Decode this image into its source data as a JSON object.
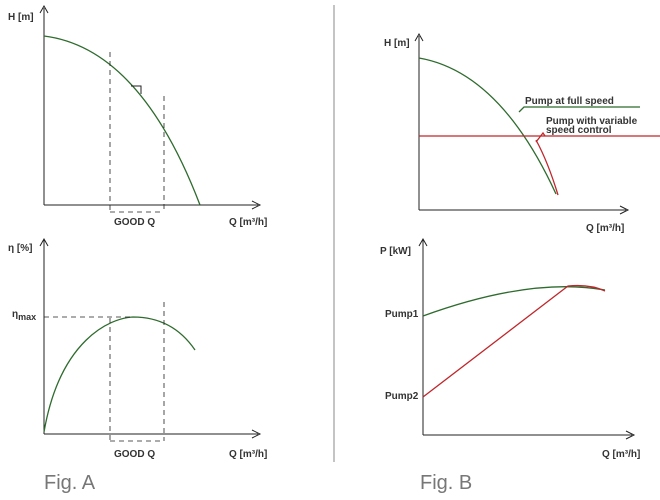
{
  "fig_a": {
    "caption": "Fig. A",
    "top": {
      "ylabel": "H [m]",
      "xlabel": "Q [m³/h]",
      "range_label": "GOOD Q"
    },
    "bottom": {
      "ylabel": "η [%]",
      "xlabel": "Q [m³/h]",
      "range_label": "GOOD Q",
      "eta_max_label": "η",
      "eta_max_sub": "max"
    }
  },
  "fig_b": {
    "caption": "Fig. B",
    "top": {
      "ylabel": "H [m]",
      "xlabel": "Q [m³/h]",
      "full_speed_label": "Pump at full speed",
      "variable_label_line1": "Pump with variable",
      "variable_label_line2": "speed control"
    },
    "bottom": {
      "ylabel": "P [kW]",
      "xlabel": "Q [m³/h]",
      "pump1_label": "Pump1",
      "pump2_label": "Pump2"
    }
  },
  "colors": {
    "full_speed": "#2e6b2e",
    "variable_speed": "#c0262b",
    "axis": "#222222"
  }
}
